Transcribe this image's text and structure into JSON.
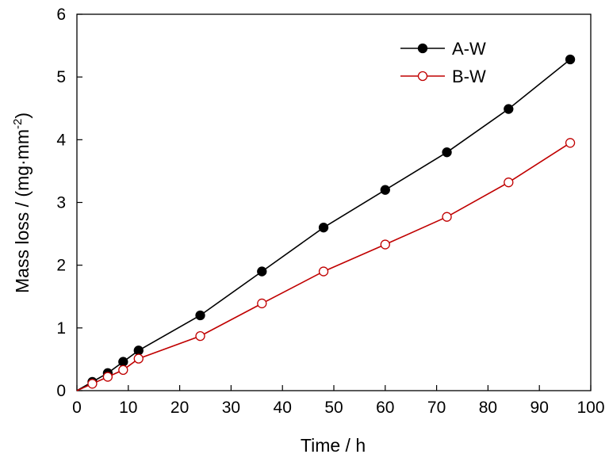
{
  "chart_data": {
    "type": "line",
    "title": "",
    "xlabel": "Time / h",
    "ylabel_main": "Mass loss / (mg·mm",
    "ylabel_sup": "-2",
    "ylabel_tail": ")",
    "xlim": [
      0,
      100
    ],
    "ylim": [
      0,
      6
    ],
    "xticks": [
      0,
      10,
      20,
      30,
      40,
      50,
      60,
      70,
      80,
      90,
      100
    ],
    "yticks": [
      0,
      1,
      2,
      3,
      4,
      5,
      6
    ],
    "grid": false,
    "legend_position": "top-right",
    "series": [
      {
        "name": "A-W",
        "color": "#000000",
        "marker": "filled-circle",
        "x": [
          0,
          3,
          6,
          9,
          12,
          24,
          36,
          48,
          60,
          72,
          84,
          96
        ],
        "y": [
          0,
          0.14,
          0.28,
          0.46,
          0.64,
          1.2,
          1.9,
          2.6,
          3.2,
          3.8,
          4.49,
          5.28
        ]
      },
      {
        "name": "B-W",
        "color": "#c00000",
        "marker": "open-circle",
        "x": [
          0,
          3,
          6,
          9,
          12,
          24,
          36,
          48,
          60,
          72,
          84,
          96
        ],
        "y": [
          0,
          0.11,
          0.22,
          0.33,
          0.51,
          0.87,
          1.39,
          1.9,
          2.33,
          2.77,
          3.32,
          3.95
        ]
      }
    ]
  }
}
